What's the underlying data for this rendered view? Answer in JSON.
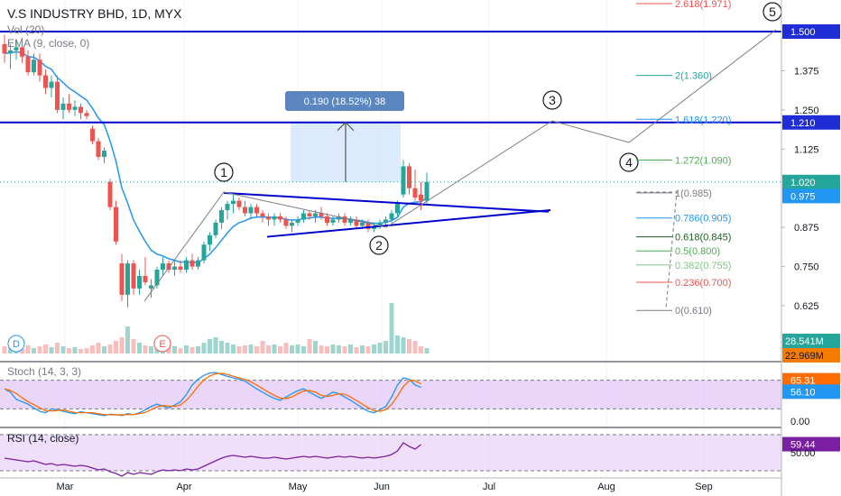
{
  "header": {
    "title": "V.S INDUSTRY BHD, 1D, MYX",
    "vol_label": "Vol (20)",
    "ema_label": "EMA (9, close, 0)"
  },
  "colors": {
    "up": "#26a69a",
    "down": "#ef5350",
    "ema": "#2196f3",
    "hline": "#0000cc",
    "triangle": "#0000cc",
    "stoch_k": "#2196f3",
    "stoch_d": "#ff6d00",
    "rsi": "#7b1fa2",
    "band_fill": "#e1c4f7",
    "measure_fill": "#d5e6fb",
    "measure_label_bg": "#5b86c0"
  },
  "chart_data": {
    "type": "candlestick",
    "price_axis": {
      "ticks": [
        "1.375",
        "1.250",
        "1.125",
        "0.875",
        "0.750",
        "0.625"
      ],
      "badges": {
        "line_upper": "1.500",
        "line_lower": "1.210",
        "last": "1.020",
        "ema": "0.975"
      }
    },
    "time_axis": [
      "Mar",
      "Apr",
      "May",
      "Jun",
      "Jul",
      "Aug",
      "Sep"
    ],
    "horizontal_lines": [
      1.5,
      1.21
    ],
    "last_price_line": 1.02,
    "candles": [
      {
        "o": 1.46,
        "h": 1.49,
        "l": 1.4,
        "c": 1.43
      },
      {
        "o": 1.43,
        "h": 1.46,
        "l": 1.38,
        "c": 1.44
      },
      {
        "o": 1.44,
        "h": 1.47,
        "l": 1.41,
        "c": 1.45
      },
      {
        "o": 1.45,
        "h": 1.48,
        "l": 1.4,
        "c": 1.42
      },
      {
        "o": 1.42,
        "h": 1.44,
        "l": 1.36,
        "c": 1.37
      },
      {
        "o": 1.37,
        "h": 1.43,
        "l": 1.36,
        "c": 1.41
      },
      {
        "o": 1.41,
        "h": 1.43,
        "l": 1.34,
        "c": 1.36
      },
      {
        "o": 1.36,
        "h": 1.38,
        "l": 1.3,
        "c": 1.32
      },
      {
        "o": 1.32,
        "h": 1.36,
        "l": 1.29,
        "c": 1.34
      },
      {
        "o": 1.34,
        "h": 1.36,
        "l": 1.24,
        "c": 1.25
      },
      {
        "o": 1.25,
        "h": 1.29,
        "l": 1.22,
        "c": 1.27
      },
      {
        "o": 1.27,
        "h": 1.3,
        "l": 1.24,
        "c": 1.25
      },
      {
        "o": 1.25,
        "h": 1.28,
        "l": 1.23,
        "c": 1.26
      },
      {
        "o": 1.26,
        "h": 1.27,
        "l": 1.22,
        "c": 1.24
      },
      {
        "o": 1.24,
        "h": 1.25,
        "l": 1.22,
        "c": 1.23
      },
      {
        "o": 1.19,
        "h": 1.2,
        "l": 1.14,
        "c": 1.15
      },
      {
        "o": 1.15,
        "h": 1.16,
        "l": 1.09,
        "c": 1.1
      },
      {
        "o": 1.1,
        "h": 1.13,
        "l": 1.08,
        "c": 1.12
      },
      {
        "o": 1.02,
        "h": 1.03,
        "l": 0.93,
        "c": 0.94
      },
      {
        "o": 0.94,
        "h": 0.96,
        "l": 0.82,
        "c": 0.83
      },
      {
        "o": 0.76,
        "h": 0.79,
        "l": 0.64,
        "c": 0.66
      },
      {
        "o": 0.66,
        "h": 0.77,
        "l": 0.62,
        "c": 0.76
      },
      {
        "o": 0.76,
        "h": 0.77,
        "l": 0.66,
        "c": 0.68
      },
      {
        "o": 0.68,
        "h": 0.74,
        "l": 0.66,
        "c": 0.72
      },
      {
        "o": 0.72,
        "h": 0.78,
        "l": 0.69,
        "c": 0.7
      },
      {
        "o": 0.68,
        "h": 0.71,
        "l": 0.65,
        "c": 0.69
      },
      {
        "o": 0.69,
        "h": 0.75,
        "l": 0.68,
        "c": 0.74
      },
      {
        "o": 0.74,
        "h": 0.78,
        "l": 0.72,
        "c": 0.76
      },
      {
        "o": 0.76,
        "h": 0.77,
        "l": 0.73,
        "c": 0.74
      },
      {
        "o": 0.74,
        "h": 0.77,
        "l": 0.72,
        "c": 0.75
      },
      {
        "o": 0.75,
        "h": 0.77,
        "l": 0.73,
        "c": 0.74
      },
      {
        "o": 0.74,
        "h": 0.78,
        "l": 0.73,
        "c": 0.77
      },
      {
        "o": 0.77,
        "h": 0.79,
        "l": 0.74,
        "c": 0.75
      },
      {
        "o": 0.75,
        "h": 0.78,
        "l": 0.74,
        "c": 0.77
      },
      {
        "o": 0.77,
        "h": 0.83,
        "l": 0.76,
        "c": 0.82
      },
      {
        "o": 0.82,
        "h": 0.86,
        "l": 0.8,
        "c": 0.85
      },
      {
        "o": 0.85,
        "h": 0.9,
        "l": 0.84,
        "c": 0.89
      },
      {
        "o": 0.89,
        "h": 0.94,
        "l": 0.87,
        "c": 0.93
      },
      {
        "o": 0.93,
        "h": 0.96,
        "l": 0.9,
        "c": 0.95
      },
      {
        "o": 0.95,
        "h": 0.98,
        "l": 0.92,
        "c": 0.96
      },
      {
        "o": 0.96,
        "h": 0.97,
        "l": 0.93,
        "c": 0.94
      },
      {
        "o": 0.94,
        "h": 0.96,
        "l": 0.91,
        "c": 0.92
      },
      {
        "o": 0.92,
        "h": 0.95,
        "l": 0.9,
        "c": 0.94
      },
      {
        "o": 0.94,
        "h": 0.95,
        "l": 0.91,
        "c": 0.92
      },
      {
        "o": 0.92,
        "h": 0.93,
        "l": 0.89,
        "c": 0.91
      },
      {
        "o": 0.91,
        "h": 0.92,
        "l": 0.88,
        "c": 0.9
      },
      {
        "o": 0.9,
        "h": 0.92,
        "l": 0.88,
        "c": 0.91
      },
      {
        "o": 0.91,
        "h": 0.92,
        "l": 0.89,
        "c": 0.9
      },
      {
        "o": 0.9,
        "h": 0.91,
        "l": 0.87,
        "c": 0.88
      },
      {
        "o": 0.88,
        "h": 0.9,
        "l": 0.86,
        "c": 0.89
      },
      {
        "o": 0.89,
        "h": 0.91,
        "l": 0.88,
        "c": 0.9
      },
      {
        "o": 0.9,
        "h": 0.93,
        "l": 0.89,
        "c": 0.92
      },
      {
        "o": 0.92,
        "h": 0.93,
        "l": 0.9,
        "c": 0.91
      },
      {
        "o": 0.91,
        "h": 0.93,
        "l": 0.89,
        "c": 0.92
      },
      {
        "o": 0.92,
        "h": 0.94,
        "l": 0.9,
        "c": 0.91
      },
      {
        "o": 0.91,
        "h": 0.92,
        "l": 0.88,
        "c": 0.89
      },
      {
        "o": 0.89,
        "h": 0.91,
        "l": 0.88,
        "c": 0.9
      },
      {
        "o": 0.9,
        "h": 0.92,
        "l": 0.89,
        "c": 0.91
      },
      {
        "o": 0.91,
        "h": 0.92,
        "l": 0.88,
        "c": 0.89
      },
      {
        "o": 0.89,
        "h": 0.91,
        "l": 0.88,
        "c": 0.9
      },
      {
        "o": 0.9,
        "h": 0.91,
        "l": 0.87,
        "c": 0.88
      },
      {
        "o": 0.88,
        "h": 0.9,
        "l": 0.87,
        "c": 0.89
      },
      {
        "o": 0.89,
        "h": 0.9,
        "l": 0.86,
        "c": 0.87
      },
      {
        "o": 0.87,
        "h": 0.89,
        "l": 0.86,
        "c": 0.88
      },
      {
        "o": 0.88,
        "h": 0.9,
        "l": 0.87,
        "c": 0.89
      },
      {
        "o": 0.89,
        "h": 0.91,
        "l": 0.88,
        "c": 0.9
      },
      {
        "o": 0.9,
        "h": 0.93,
        "l": 0.89,
        "c": 0.92
      },
      {
        "o": 0.92,
        "h": 0.96,
        "l": 0.91,
        "c": 0.95
      },
      {
        "o": 0.98,
        "h": 1.09,
        "l": 0.97,
        "c": 1.07
      },
      {
        "o": 1.07,
        "h": 1.08,
        "l": 0.98,
        "c": 1.0
      },
      {
        "o": 1.0,
        "h": 1.06,
        "l": 0.96,
        "c": 0.97
      },
      {
        "o": 0.98,
        "h": 1.02,
        "l": 0.93,
        "c": 0.96
      },
      {
        "o": 0.96,
        "h": 1.05,
        "l": 0.95,
        "c": 1.02
      }
    ],
    "ema_value_last": 0.975,
    "annotations": {
      "measure_label": "0.190 (18.52%) 38",
      "waves": [
        "1",
        "2",
        "3",
        "4",
        "5"
      ]
    },
    "fib_levels": [
      {
        "label": "2.618(1.971)",
        "value": 1.971,
        "color": "#ef5350"
      },
      {
        "label": "2(1.360)",
        "value": 1.36,
        "color": "#26a69a"
      },
      {
        "label": "1.618(1.220)",
        "value": 1.22,
        "color": "#2196f3"
      },
      {
        "label": "1.272(1.090)",
        "value": 1.09,
        "color": "#4caf50"
      },
      {
        "label": "1(0.985)",
        "value": 0.985,
        "color": "#787b86"
      },
      {
        "label": "0.786(0.905)",
        "value": 0.905,
        "color": "#2196f3"
      },
      {
        "label": "0.618(0.845)",
        "value": 0.845,
        "color": "#1b5e20"
      },
      {
        "label": "0.5(0.800)",
        "value": 0.8,
        "color": "#4caf50"
      },
      {
        "label": "0.382(0.755)",
        "value": 0.755,
        "color": "#81c784"
      },
      {
        "label": "0.236(0.700)",
        "value": 0.7,
        "color": "#ef5350"
      },
      {
        "label": "0(0.610)",
        "value": 0.61,
        "color": "#787b86"
      }
    ],
    "volume": {
      "badges": [
        "28.541M",
        "22.969M"
      ],
      "markers": [
        "D",
        "E"
      ]
    },
    "stoch": {
      "label": "Stoch (14, 3, 3)",
      "k_last": "65.31",
      "d_last": "56.10",
      "band_upper": 80,
      "band_lower": 20,
      "zero_label": "0.00"
    },
    "rsi": {
      "label": "RSI (14, close)",
      "last": "59.44",
      "ref": "50.00"
    }
  }
}
